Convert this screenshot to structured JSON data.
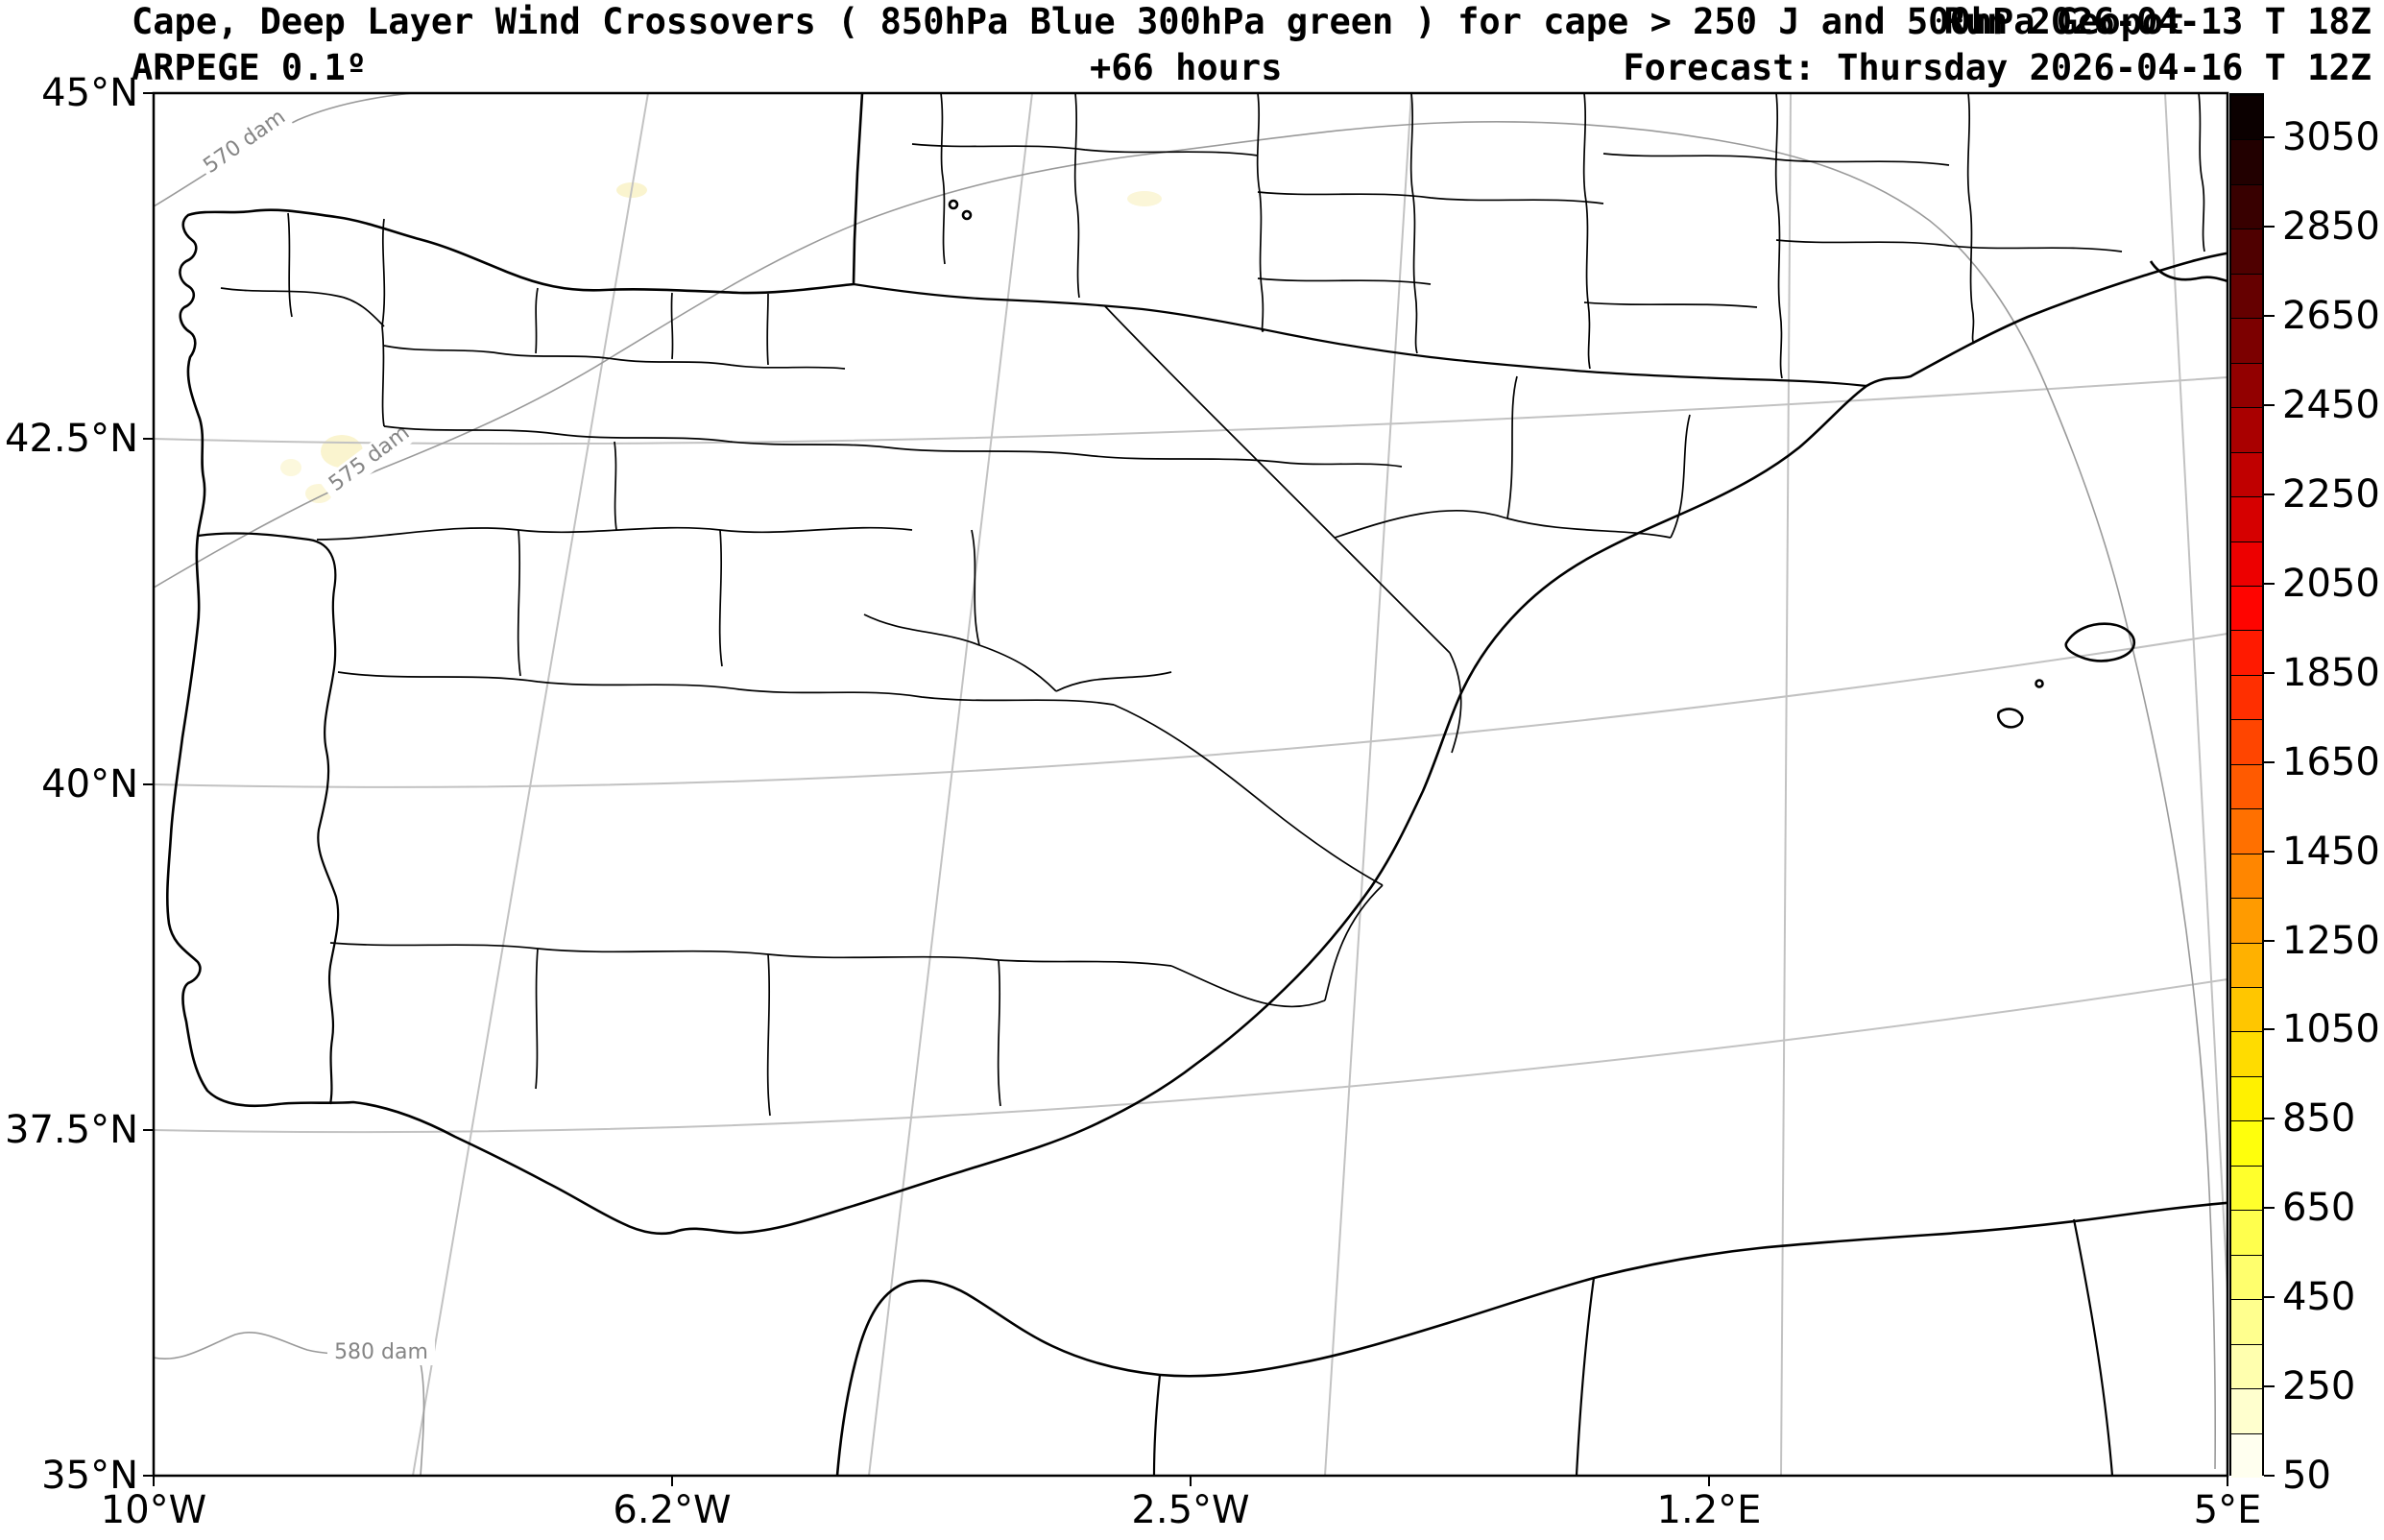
{
  "header": {
    "title": "Cape, Deep Layer Wind Crossovers ( 850hPa Blue 300hPa green ) for cape > 250 J and 500hPa Geopot",
    "run": "Run 2026-04-13 T 18Z",
    "model": "ARPEGE 0.1º",
    "lead_time": "+66 hours",
    "forecast": "Forecast: Thursday 2026-04-16 T 12Z"
  },
  "axes": {
    "x_ticks": [
      "10°W",
      "6.2°W",
      "2.5°W",
      "1.2°E",
      "5°E"
    ],
    "y_ticks": [
      "45°N",
      "42.5°N",
      "40°N",
      "37.5°N",
      "35°N"
    ]
  },
  "colorbar": {
    "tick_labels": [
      "50",
      "250",
      "450",
      "650",
      "850",
      "1050",
      "1250",
      "1450",
      "1650",
      "1850",
      "2050",
      "2250",
      "2450",
      "2650",
      "2850",
      "3050"
    ],
    "min_level": 50,
    "max_level": 3150,
    "level_step": 100,
    "colormap": "hot_r"
  },
  "contour_labels": {
    "c570": "570 dam",
    "c575": "575 dam",
    "c580": "580 dam"
  },
  "chart_data": {
    "type": "map",
    "title": "Cape, Deep Layer Wind Crossovers ( 850hPa Blue 300hPa green ) for cape > 250 J and 500hPa Geopot",
    "model": "ARPEGE 0.1º",
    "run": "Run 2026-04-13 T 18Z",
    "lead_time_hours": 66,
    "valid_time": "Thursday 2026-04-16 T 12Z",
    "region": "Iberian Peninsula with southern France, Balearic Islands and North African coast",
    "lon_range": [
      "10°W",
      "5°E"
    ],
    "lat_range": [
      "35°N",
      "45°N"
    ],
    "x_tick_labels": [
      "10°W",
      "6.2°W",
      "2.5°W",
      "1.2°E",
      "5°E"
    ],
    "y_tick_labels": [
      "35°N",
      "37.5°N",
      "40°N",
      "42.5°N",
      "45°N"
    ],
    "shaded_quantity": "cape (J)",
    "cape_barb_threshold": "cape > 250 J",
    "wind_crossover_levels": {
      "850hPa": "Blue",
      "300hPa": "green"
    },
    "wind_barbs_plotted": 0,
    "colorbar_levels": {
      "min": 50,
      "max": 3150,
      "step": 100,
      "colormap": "hot_r",
      "labeled_ticks": [
        50,
        250,
        450,
        650,
        850,
        1050,
        1250,
        1450,
        1650,
        1850,
        2050,
        2250,
        2450,
        2650,
        2850,
        3050
      ]
    },
    "geopotential_contours_500hPa": {
      "unit": "dam",
      "visible_levels": [
        570,
        575,
        580
      ]
    },
    "cape_shading_note": "only a few faint pale-yellow patches (< 250 J) over NW Iberia and the northern coast"
  }
}
